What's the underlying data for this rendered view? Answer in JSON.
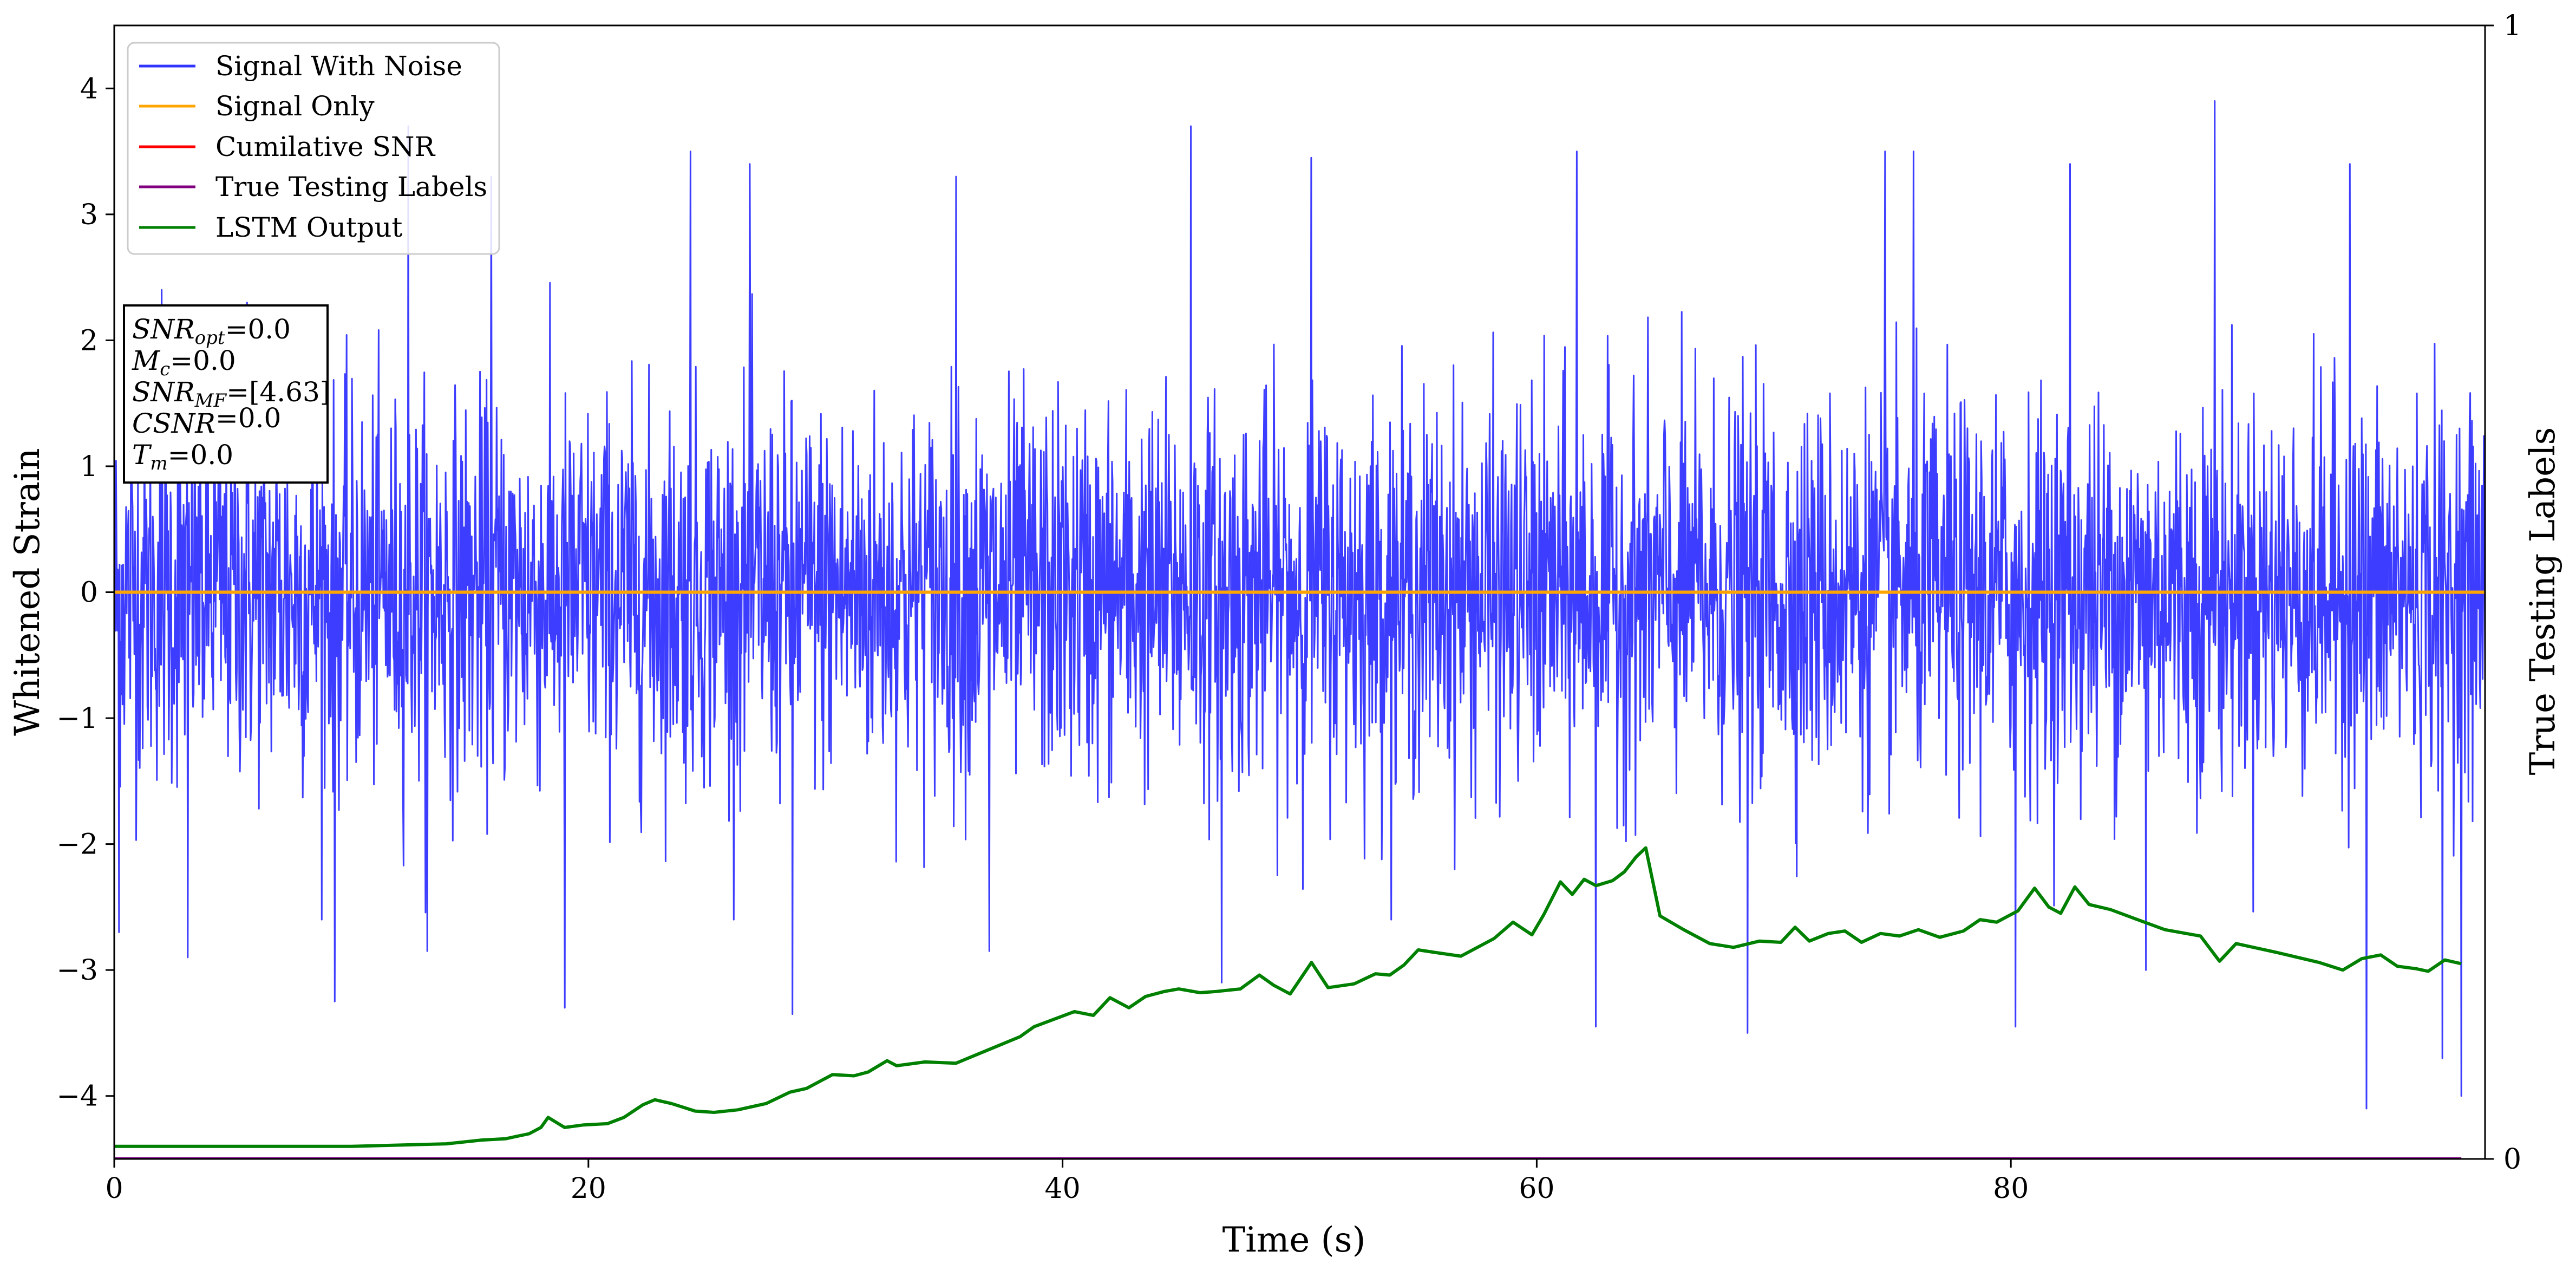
{
  "chart_data": {
    "type": "line",
    "xlabel": "Time (s)",
    "ylabel": "Whitened Strain",
    "ylabel_right": "True Testing Labels",
    "xlim": [
      0,
      100
    ],
    "ylim": [
      -4.5,
      4.5
    ],
    "ylim_right": [
      0,
      1
    ],
    "x_ticks": [
      "0",
      "20",
      "40",
      "60",
      "80"
    ],
    "x_tick_values": [
      0,
      20,
      40,
      60,
      80
    ],
    "y_ticks": [
      "−4",
      "−3",
      "−2",
      "−1",
      "0",
      "1",
      "2",
      "3",
      "4"
    ],
    "y_tick_values": [
      -4,
      -3,
      -2,
      -1,
      0,
      1,
      2,
      3,
      4
    ],
    "y_right_ticks": [
      "0",
      "1"
    ],
    "y_right_tick_values": [
      0,
      1
    ],
    "grid": false,
    "legend_position": "top-left",
    "legend": [
      {
        "name": "Signal With Noise",
        "color": "#3333ff"
      },
      {
        "name": "Signal Only",
        "color": "#ffa500"
      },
      {
        "name": "Cumilative SNR",
        "color": "#ff0000"
      },
      {
        "name": "True Testing Labels",
        "color": "#800080"
      },
      {
        "name": "LSTM Output",
        "color": "#008000"
      }
    ],
    "annotation_box": [
      {
        "sym": "SNR",
        "sub": "opt",
        "value": "=0.0"
      },
      {
        "sym": "M",
        "sub": "c",
        "value": "=0.0"
      },
      {
        "sym": "SNR",
        "sub": "MF",
        "value": "=[4.63]"
      },
      {
        "sym": "CSNR",
        "sub": "",
        "value": "=0.0"
      },
      {
        "sym": "T",
        "sub": "m",
        "value": "=0.0"
      }
    ],
    "series": [
      {
        "name": "Signal With Noise",
        "axis": "left",
        "color": "#3333ff",
        "style": "dense-noise",
        "sigma": 1.0,
        "upper_peaks": [
          [
            2,
            2.4
          ],
          [
            5.6,
            2.3
          ],
          [
            12.4,
            3.7
          ],
          [
            15.9,
            3.3
          ],
          [
            24.3,
            3.5
          ],
          [
            26.8,
            3.4
          ],
          [
            35.5,
            3.3
          ],
          [
            45.4,
            3.7
          ],
          [
            50.5,
            3.45
          ],
          [
            61.7,
            3.5
          ],
          [
            74.7,
            3.5
          ],
          [
            75.9,
            3.5
          ],
          [
            82.5,
            3.4
          ],
          [
            88.6,
            3.9
          ],
          [
            94.3,
            3.4
          ]
        ],
        "lower_peaks": [
          [
            0.2,
            -2.7
          ],
          [
            3.1,
            -2.9
          ],
          [
            9.3,
            -3.25
          ],
          [
            13.2,
            -2.85
          ],
          [
            19,
            -3.3
          ],
          [
            28.6,
            -3.35
          ],
          [
            36.9,
            -2.85
          ],
          [
            46.7,
            -3.1
          ],
          [
            62.5,
            -3.45
          ],
          [
            68.9,
            -3.5
          ],
          [
            80.2,
            -3.45
          ],
          [
            85.7,
            -3.0
          ],
          [
            95,
            -4.1
          ],
          [
            98.2,
            -3.7
          ],
          [
            99,
            -4.0
          ]
        ]
      },
      {
        "name": "Signal Only",
        "axis": "left",
        "color": "#ffa500",
        "x": [
          0,
          100
        ],
        "y": [
          0,
          0
        ]
      },
      {
        "name": "True Testing Labels",
        "axis": "right",
        "color": "#800080",
        "x": [
          0,
          99
        ],
        "y": [
          0,
          0
        ]
      },
      {
        "name": "LSTM Output",
        "axis": "left",
        "color": "#008000",
        "x": [
          0,
          10,
          14,
          15.5,
          16.5,
          17,
          17.5,
          18,
          18.3,
          19,
          19.8,
          20.8,
          21.5,
          22.3,
          22.8,
          23.5,
          24.5,
          25.3,
          26.3,
          27.5,
          28.5,
          29.2,
          30.3,
          31.2,
          31.8,
          32.6,
          33,
          34.2,
          35.5,
          37.3,
          38.2,
          38.8,
          40.5,
          41.3,
          42,
          42.8,
          43.5,
          44.3,
          44.9,
          45.8,
          46.5,
          47.5,
          48.3,
          48.9,
          49.6,
          50.5,
          51.2,
          52.3,
          53.2,
          53.8,
          54.4,
          55,
          55.7,
          56.8,
          58.2,
          59,
          59.8,
          60.3,
          61,
          61.5,
          62,
          62.5,
          63.2,
          63.7,
          64.2,
          64.6,
          65.2,
          66.2,
          67.3,
          68.3,
          69.4,
          70.3,
          70.9,
          71.5,
          72.3,
          73,
          73.7,
          74.5,
          75.3,
          76.1,
          77,
          78,
          78.7,
          79.4,
          80.3,
          81,
          81.6,
          82.1,
          82.7,
          83.3,
          84.2,
          85.2,
          86.5,
          88,
          88.8,
          89.5,
          91.2,
          93,
          94,
          94.8,
          95.6,
          96.3,
          97.1,
          97.6,
          98.3,
          99
        ],
        "y": [
          -4.4,
          -4.4,
          -4.38,
          -4.35,
          -4.34,
          -4.32,
          -4.3,
          -4.25,
          -4.17,
          -4.25,
          -4.23,
          -4.22,
          -4.17,
          -4.07,
          -4.03,
          -4.06,
          -4.12,
          -4.13,
          -4.11,
          -4.06,
          -3.97,
          -3.94,
          -3.83,
          -3.84,
          -3.81,
          -3.72,
          -3.76,
          -3.73,
          -3.74,
          -3.6,
          -3.53,
          -3.45,
          -3.33,
          -3.36,
          -3.22,
          -3.3,
          -3.21,
          -3.17,
          -3.15,
          -3.18,
          -3.17,
          -3.15,
          -3.04,
          -3.12,
          -3.19,
          -2.94,
          -3.14,
          -3.11,
          -3.03,
          -3.04,
          -2.96,
          -2.84,
          -2.86,
          -2.89,
          -2.75,
          -2.62,
          -2.72,
          -2.56,
          -2.3,
          -2.4,
          -2.28,
          -2.33,
          -2.29,
          -2.22,
          -2.1,
          -2.03,
          -2.57,
          -2.68,
          -2.79,
          -2.82,
          -2.77,
          -2.78,
          -2.66,
          -2.77,
          -2.71,
          -2.69,
          -2.78,
          -2.71,
          -2.73,
          -2.68,
          -2.74,
          -2.69,
          -2.6,
          -2.62,
          -2.53,
          -2.35,
          -2.5,
          -2.55,
          -2.34,
          -2.48,
          -2.52,
          -2.59,
          -2.68,
          -2.73,
          -2.93,
          -2.79,
          -2.86,
          -2.94,
          -3.0,
          -2.91,
          -2.88,
          -2.97,
          -2.99,
          -3.01,
          -2.92,
          -2.95
        ]
      }
    ]
  }
}
